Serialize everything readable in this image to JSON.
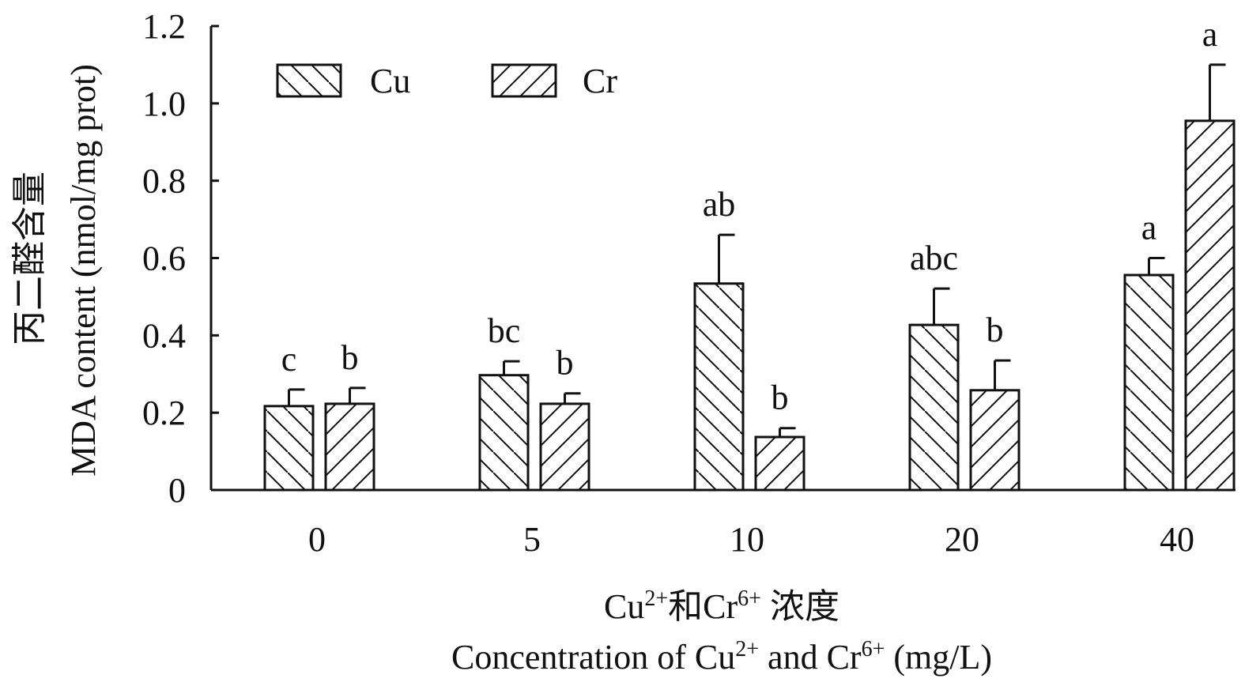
{
  "chart_data": {
    "type": "bar",
    "categories": [
      "0",
      "5",
      "10",
      "20",
      "40"
    ],
    "series": [
      {
        "name": "Cu",
        "hatch": "backslash",
        "values": [
          0.217,
          0.297,
          0.534,
          0.427,
          0.556
        ],
        "errors": [
          0.043,
          0.036,
          0.126,
          0.094,
          0.044
        ],
        "letters": [
          "c",
          "bc",
          "ab",
          "abc",
          "a"
        ]
      },
      {
        "name": "Cr",
        "hatch": "slash",
        "values": [
          0.223,
          0.223,
          0.137,
          0.258,
          0.955
        ],
        "errors": [
          0.041,
          0.027,
          0.023,
          0.077,
          0.145
        ],
        "letters": [
          "b",
          "b",
          "b",
          "b",
          "a"
        ]
      }
    ],
    "ylim": [
      0,
      1.2
    ],
    "yticks": [
      "0",
      "0.2",
      "0.4",
      "0.6",
      "0.8",
      "1.0",
      "1.2"
    ],
    "ytick_values": [
      0,
      0.2,
      0.4,
      0.6,
      0.8,
      1.0,
      1.2
    ],
    "ylabel_cn": "丙二醛含量",
    "ylabel": "MDA content (nmol/mg prot)",
    "xlabel_cn": {
      "a": "Cu",
      "sup1": "2+",
      "b": "和Cr",
      "sup2": "6+",
      "c": " 浓度"
    },
    "xlabel": {
      "a": "Concentration of Cu",
      "sup1": "2+",
      "b": " and Cr",
      "sup2": "6+",
      "c": " (mg/L)"
    },
    "legend_placement": "top-left",
    "grid": false,
    "colors": {
      "bar_fill": "#ffffff",
      "stroke": "#111111"
    }
  }
}
